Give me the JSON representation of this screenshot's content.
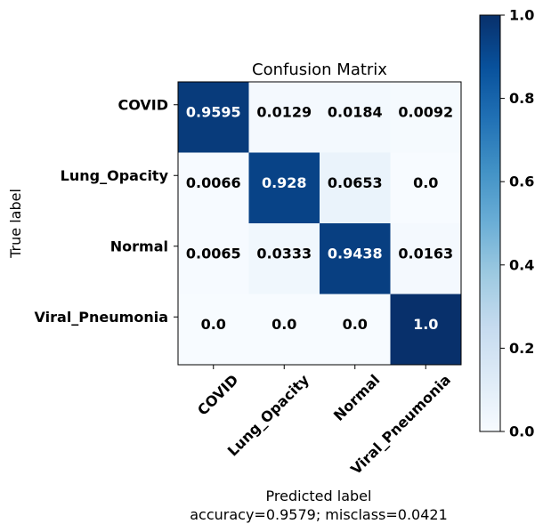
{
  "chart_data": {
    "type": "heatmap",
    "title": "Confusion Matrix",
    "ylabel": "True label",
    "xlabel": "Predicted label",
    "footer": "accuracy=0.9579; misclass=0.0421",
    "row_labels": [
      "COVID",
      "Lung_Opacity",
      "Normal",
      "Viral_Pneumonia"
    ],
    "col_labels": [
      "COVID",
      "Lung_Opacity",
      "Normal",
      "Viral_Pneumonia"
    ],
    "values": [
      [
        0.9595,
        0.0129,
        0.0184,
        0.0092
      ],
      [
        0.0066,
        0.928,
        0.0653,
        0.0
      ],
      [
        0.0065,
        0.0333,
        0.9438,
        0.0163
      ],
      [
        0.0,
        0.0,
        0.0,
        1.0
      ]
    ],
    "cell_labels": [
      [
        "0.9595",
        "0.0129",
        "0.0184",
        "0.0092"
      ],
      [
        "0.0066",
        "0.928",
        "0.0653",
        "0.0"
      ],
      [
        "0.0065",
        "0.0333",
        "0.9438",
        "0.0163"
      ],
      [
        "0.0",
        "0.0",
        "0.0",
        "1.0"
      ]
    ],
    "colormap": "Blues",
    "colorbar": {
      "range": [
        0.0,
        1.0
      ],
      "ticks": [
        0.0,
        0.2,
        0.4,
        0.6,
        0.8,
        1.0
      ],
      "tick_labels": [
        "0.0",
        "0.2",
        "0.4",
        "0.6",
        "0.8",
        "1.0"
      ]
    },
    "text_colors": {
      "dark": "#000000",
      "light": "#ffffff"
    },
    "grid": false
  }
}
